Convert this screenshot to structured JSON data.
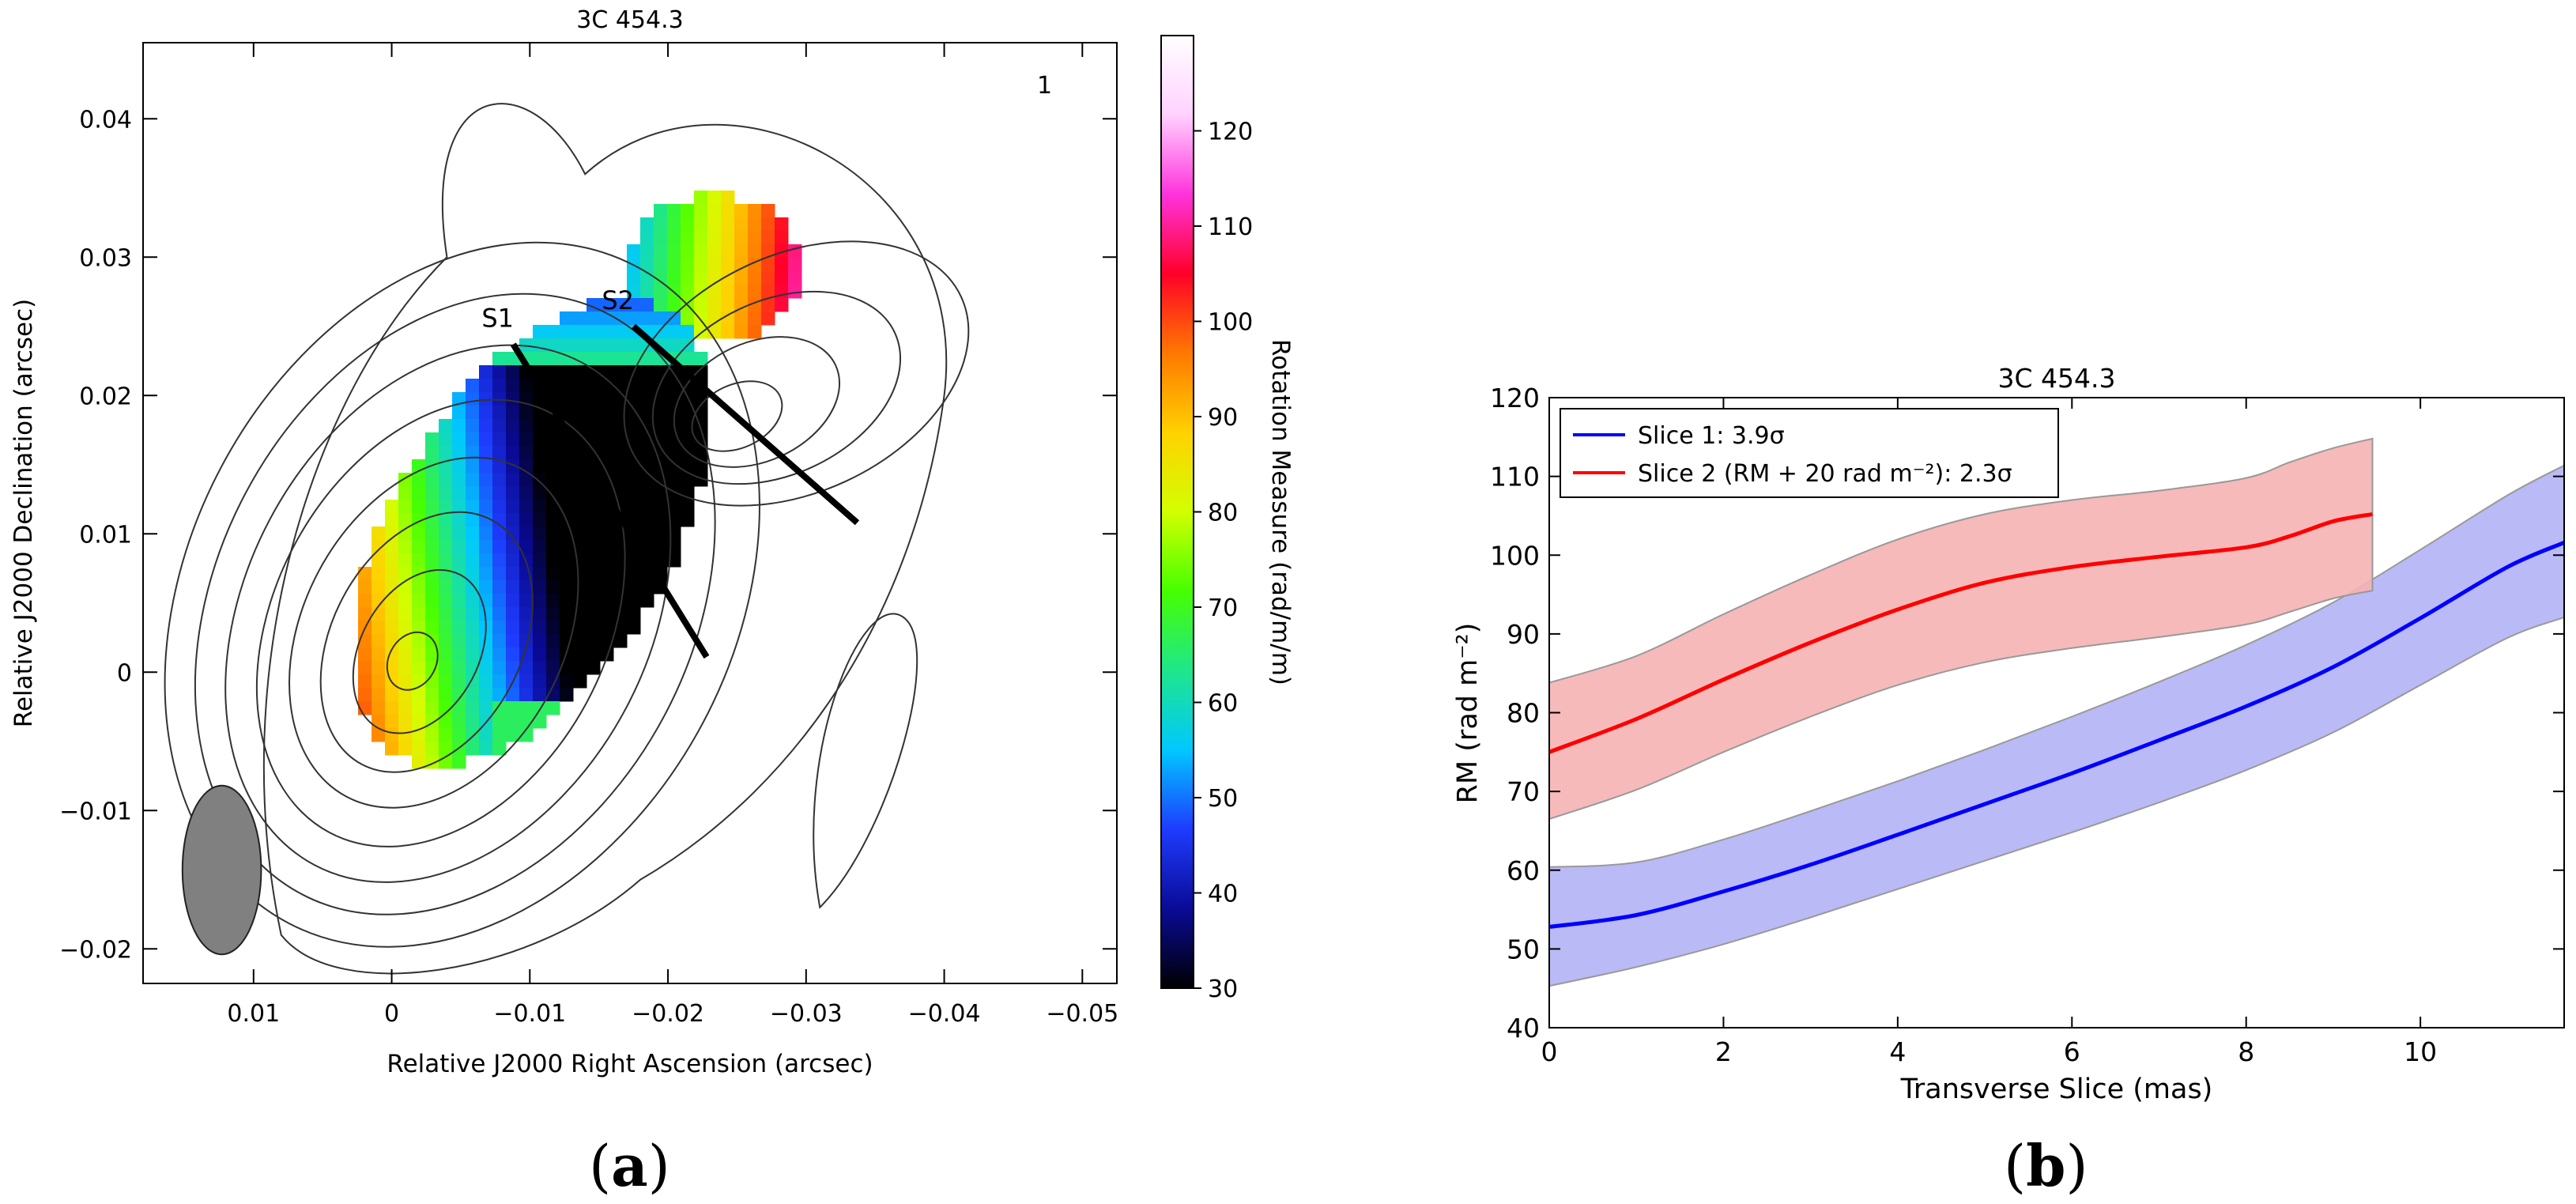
{
  "panel_a": {
    "caption": "a",
    "title": "3C 454.3",
    "corner_label": "1",
    "xlabel": "Relative J2000 Right Ascension (arcsec)",
    "ylabel": "Relative J2000 Declination (arcsec)",
    "colorbar_label": "Rotation Measure (rad/m/m)",
    "slice_labels": [
      "S1",
      "S2"
    ]
  },
  "panel_b": {
    "caption": "b"
  },
  "chart_data": [
    {
      "type": "heatmap",
      "title": "3C 454.3",
      "xlabel": "Relative J2000 Right Ascension (arcsec)",
      "ylabel": "Relative J2000 Declination (arcsec)",
      "xlim": [
        0.018,
        -0.0525
      ],
      "ylim": [
        -0.0225,
        0.0455
      ],
      "x_ticks": [
        0.01,
        0,
        -0.01,
        -0.02,
        -0.03,
        -0.04,
        -0.05
      ],
      "x_tick_labels": [
        "0.01",
        "0",
        "−0.01",
        "−0.02",
        "−0.03",
        "−0.04",
        "−0.05"
      ],
      "y_ticks": [
        -0.02,
        -0.01,
        0,
        0.01,
        0.02,
        0.03,
        0.04
      ],
      "y_tick_labels": [
        "−0.02",
        "−0.01",
        "0",
        "0.01",
        "0.02",
        "0.03",
        "0.04"
      ],
      "colorbar": {
        "label": "Rotation Measure (rad/m/m)",
        "range": [
          30,
          130
        ],
        "ticks": [
          30,
          40,
          50,
          60,
          70,
          80,
          90,
          100,
          110,
          120
        ],
        "colormap": [
          "#000000",
          "#0a0a96",
          "#1e3cff",
          "#00c8ff",
          "#1ee68c",
          "#46ff00",
          "#d2ff00",
          "#ffd200",
          "#ff7800",
          "#ff0028",
          "#ff32dc",
          "#ffd2ff",
          "#ffffff"
        ]
      },
      "slices": [
        {
          "name": "S1",
          "from": [
            -0.0088,
            0.0237
          ],
          "to": [
            -0.0228,
            0.0011
          ]
        },
        {
          "name": "S2",
          "from": [
            -0.0175,
            0.025
          ],
          "to": [
            -0.0337,
            0.0108
          ]
        }
      ],
      "beam": {
        "center": [
          0.0123,
          -0.0143
        ],
        "major": 0.0122,
        "minor": 0.0057,
        "angle_deg": 0
      }
    },
    {
      "type": "line",
      "title": "3C 454.3",
      "xlabel": "Transverse Slice (mas)",
      "ylabel": "RM (rad m⁻²)",
      "xlim": [
        0,
        11.65
      ],
      "ylim": [
        40,
        120
      ],
      "x_ticks": [
        0,
        2,
        4,
        6,
        8,
        10
      ],
      "y_ticks": [
        40,
        50,
        60,
        70,
        80,
        90,
        100,
        110,
        120
      ],
      "legend": "top-left",
      "series": [
        {
          "name": "Slice 1: 3.9σ",
          "color": "#0000ff",
          "band_color": "#b3b3f5",
          "x": [
            0,
            1,
            2,
            3,
            4,
            5,
            6,
            7,
            8,
            9,
            10,
            11,
            11.65
          ],
          "y": [
            52.8,
            54.3,
            57.3,
            60.7,
            64.5,
            68.4,
            72.3,
            76.5,
            80.8,
            85.8,
            92.0,
            98.5,
            101.6
          ],
          "lower": [
            45.3,
            47.7,
            50.6,
            54.0,
            57.6,
            61.2,
            64.8,
            68.6,
            72.7,
            77.5,
            83.5,
            89.5,
            92.1
          ],
          "upper": [
            60.4,
            61.0,
            63.9,
            67.5,
            71.3,
            75.3,
            79.5,
            83.9,
            88.6,
            94.0,
            100.7,
            107.6,
            111.4
          ]
        },
        {
          "name": "Slice 2 (RM + 20 rad m⁻²): 2.3σ",
          "color": "#ff0000",
          "band_color": "#f5b3b3",
          "x": [
            0,
            1,
            2,
            3,
            4,
            5,
            6,
            7,
            8,
            8.5,
            9,
            9.45
          ],
          "y": [
            75.0,
            79.2,
            84.2,
            88.9,
            93.1,
            96.5,
            98.5,
            99.8,
            101.0,
            102.4,
            104.3,
            105.2
          ],
          "lower": [
            66.5,
            70.2,
            75.0,
            79.5,
            83.5,
            86.4,
            88.2,
            89.6,
            91.2,
            92.8,
            94.5,
            95.5
          ],
          "upper": [
            83.8,
            87.2,
            92.5,
            97.5,
            102.0,
            105.2,
            107.0,
            108.2,
            109.8,
            111.8,
            113.6,
            114.8
          ]
        }
      ]
    }
  ]
}
